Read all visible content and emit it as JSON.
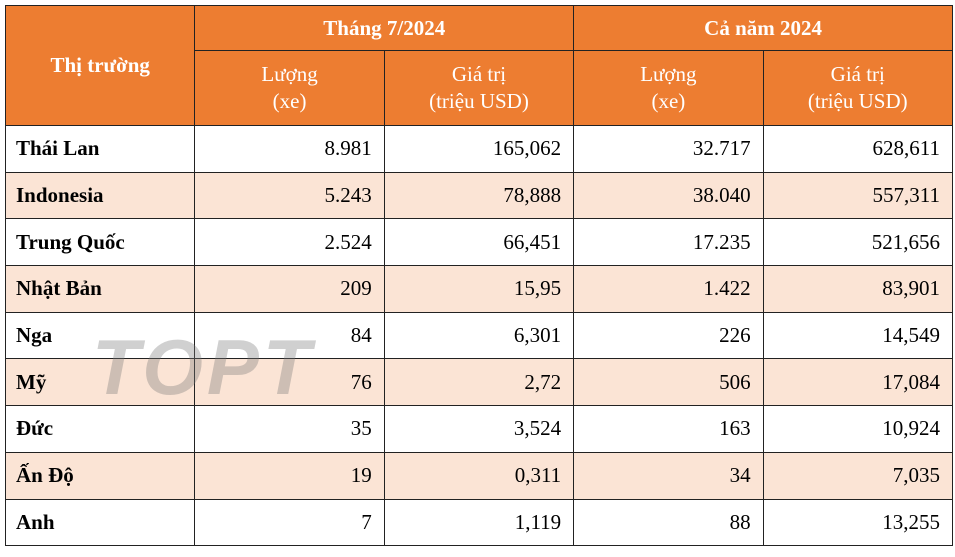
{
  "table": {
    "header": {
      "market": "Thị trường",
      "groups": [
        "Tháng 7/2024",
        "Cả năm 2024"
      ],
      "columns": [
        [
          "Lượng",
          "(xe)"
        ],
        [
          "Giá trị",
          "(triệu USD)"
        ],
        [
          "Lượng",
          "(xe)"
        ],
        [
          "Giá trị",
          "(triệu USD)"
        ]
      ]
    },
    "rows": [
      [
        "Thái Lan",
        "8.981",
        "165,062",
        "32.717",
        "628,611"
      ],
      [
        "Indonesia",
        "5.243",
        "78,888",
        "38.040",
        "557,311"
      ],
      [
        "Trung Quốc",
        "2.524",
        "66,451",
        "17.235",
        "521,656"
      ],
      [
        "Nhật Bản",
        "209",
        "15,95",
        "1.422",
        "83,901"
      ],
      [
        "Nga",
        "84",
        "6,301",
        "226",
        "14,549"
      ],
      [
        "Mỹ",
        "76",
        "2,72",
        "506",
        "17,084"
      ],
      [
        "Đức",
        "35",
        "3,524",
        "163",
        "10,924"
      ],
      [
        "Ấn Độ",
        "19",
        "0,311",
        "34",
        "7,035"
      ],
      [
        "Anh",
        "7",
        "1,119",
        "88",
        "13,255"
      ]
    ],
    "watermark": "TOPT"
  }
}
